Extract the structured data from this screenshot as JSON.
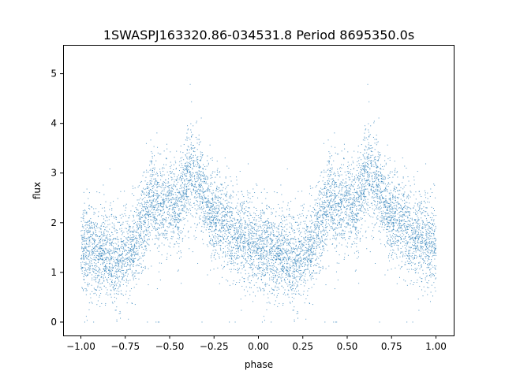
{
  "chart_data": {
    "type": "scatter",
    "title": "1SWASPJ163320.86-034531.8 Period 8695350.0s",
    "xlabel": "phase",
    "ylabel": "flux",
    "xlim": [
      -1.1,
      1.1
    ],
    "ylim": [
      -0.27,
      5.58
    ],
    "xticks": [
      -1.0,
      -0.75,
      -0.5,
      -0.25,
      0.0,
      0.25,
      0.5,
      0.75,
      1.0
    ],
    "xtick_labels": [
      "−1.00",
      "−0.75",
      "−0.50",
      "−0.25",
      "0.00",
      "0.25",
      "0.50",
      "0.75",
      "1.00"
    ],
    "yticks": [
      0,
      1,
      2,
      3,
      4,
      5
    ],
    "ytick_labels": [
      "0",
      "1",
      "2",
      "3",
      "4",
      "5"
    ],
    "grid": false,
    "legend": "none",
    "marker_color": "#1f77b4",
    "series": [
      {
        "phase_profile": [
          [
            0.0,
            1.55
          ],
          [
            0.05,
            1.45
          ],
          [
            0.1,
            1.3
          ],
          [
            0.15,
            1.35
          ],
          [
            0.2,
            1.25
          ],
          [
            0.25,
            1.3
          ],
          [
            0.3,
            1.55
          ],
          [
            0.35,
            1.95
          ],
          [
            0.4,
            2.45
          ],
          [
            0.43,
            2.35
          ],
          [
            0.45,
            2.45
          ],
          [
            0.5,
            2.5
          ],
          [
            0.55,
            2.3
          ],
          [
            0.6,
            2.95
          ],
          [
            0.62,
            3.05
          ],
          [
            0.65,
            2.8
          ],
          [
            0.7,
            2.45
          ],
          [
            0.75,
            2.1
          ],
          [
            0.8,
            1.95
          ],
          [
            0.85,
            1.85
          ],
          [
            0.9,
            1.75
          ],
          [
            0.95,
            1.6
          ],
          [
            1.0,
            1.55
          ]
        ],
        "scatter_sd": 0.45,
        "n_points_per_cycle": 4200,
        "repeat_range": [
          -1.0,
          1.0
        ]
      }
    ]
  }
}
